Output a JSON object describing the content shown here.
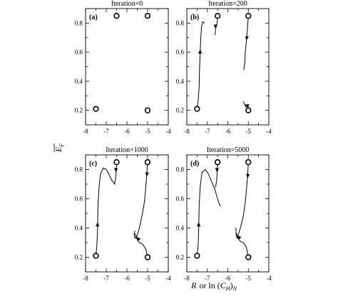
{
  "figure": {
    "xlabel_main": "R",
    "xlabel_or": "or ln (",
    "xlabel_C": "C",
    "xlabel_H": "H",
    "xlabel_close": ")",
    "xlabel_N": "N",
    "ylabel_main": "E",
    "ylabel_sub": "F"
  },
  "chart_data": [
    {
      "type": "scatter",
      "label": "(a)",
      "title": "Iteration=0",
      "xlim": [
        -8,
        -4
      ],
      "ylim": [
        0.1,
        0.9
      ],
      "xticks": [
        -8,
        -7,
        -6,
        -5,
        -4
      ],
      "yticks": [
        0.2,
        0.4,
        0.6,
        0.8
      ],
      "points": [
        [
          -7.5,
          0.21
        ],
        [
          -6.5,
          0.85
        ],
        [
          -5,
          0.85
        ],
        [
          -5,
          0.2
        ]
      ],
      "paths": []
    },
    {
      "type": "scatter",
      "label": "(b)",
      "title": "Iteration=200",
      "xlim": [
        -8,
        -4
      ],
      "ylim": [
        0.1,
        0.9
      ],
      "xticks": [
        -8,
        -7,
        -6,
        -5,
        -4
      ],
      "yticks": [
        0.2,
        0.4,
        0.6,
        0.8
      ],
      "points": [
        [
          -7.5,
          0.21
        ],
        [
          -6.5,
          0.85
        ],
        [
          -5,
          0.85
        ],
        [
          -5,
          0.2
        ]
      ],
      "paths": [
        {
          "points": [
            [
              -7.5,
              0.21
            ],
            [
              -7.45,
              0.26
            ],
            [
              -7.4,
              0.36
            ],
            [
              -7.38,
              0.48
            ],
            [
              -7.35,
              0.6
            ],
            [
              -7.32,
              0.7
            ],
            [
              -7.28,
              0.78
            ],
            [
              -7.22,
              0.81
            ],
            [
              -7.15,
              0.8
            ]
          ],
          "arrow": {
            "at": [
              -7.35,
              0.62
            ],
            "angle": 90
          }
        },
        {
          "points": [
            [
              -6.5,
              0.85
            ],
            [
              -6.52,
              0.8
            ],
            [
              -6.6,
              0.76
            ],
            [
              -6.62,
              0.72
            ]
          ],
          "arrow": {
            "at": [
              -6.6,
              0.76
            ],
            "angle": -90
          }
        },
        {
          "points": [
            [
              -5,
              0.85
            ],
            [
              -5.05,
              0.75
            ],
            [
              -5.1,
              0.67
            ],
            [
              -5.15,
              0.6
            ],
            [
              -5.17,
              0.53
            ],
            [
              -5.22,
              0.48
            ]
          ],
          "arrow": {
            "at": [
              -5.1,
              0.68
            ],
            "angle": -100
          }
        },
        {
          "points": [
            [
              -5,
              0.2
            ],
            [
              -5.1,
              0.22
            ],
            [
              -5.18,
              0.24
            ],
            [
              -5.25,
              0.26
            ]
          ],
          "arrow": {
            "at": [
              -5.18,
              0.24
            ],
            "angle": 160
          }
        }
      ]
    },
    {
      "type": "scatter",
      "label": "(c)",
      "title": "Iteration=1000",
      "xlim": [
        -8,
        -4
      ],
      "ylim": [
        0.1,
        0.9
      ],
      "xticks": [
        -8,
        -7,
        -6,
        -5,
        -4
      ],
      "yticks": [
        0.2,
        0.4,
        0.6,
        0.8
      ],
      "points": [
        [
          -7.5,
          0.21
        ],
        [
          -6.5,
          0.85
        ],
        [
          -5,
          0.85
        ],
        [
          -5,
          0.2
        ]
      ],
      "paths": [
        {
          "points": [
            [
              -7.5,
              0.21
            ],
            [
              -7.45,
              0.28
            ],
            [
              -7.42,
              0.4
            ],
            [
              -7.4,
              0.55
            ],
            [
              -7.35,
              0.68
            ],
            [
              -7.28,
              0.77
            ],
            [
              -7.15,
              0.81
            ],
            [
              -7.0,
              0.8
            ],
            [
              -6.88,
              0.77
            ],
            [
              -6.75,
              0.73
            ],
            [
              -6.6,
              0.7
            ]
          ],
          "arrow": {
            "at": [
              -7.42,
              0.44
            ],
            "angle": 90
          }
        },
        {
          "points": [
            [
              -6.5,
              0.85
            ],
            [
              -6.52,
              0.78
            ],
            [
              -6.55,
              0.74
            ],
            [
              -6.6,
              0.7
            ]
          ],
          "arrow": {
            "at": [
              -6.53,
              0.78
            ],
            "angle": -90
          }
        },
        {
          "points": [
            [
              -5,
              0.85
            ],
            [
              -5.04,
              0.76
            ],
            [
              -5.1,
              0.66
            ],
            [
              -5.15,
              0.58
            ],
            [
              -5.25,
              0.5
            ],
            [
              -5.32,
              0.45
            ],
            [
              -5.4,
              0.4
            ],
            [
              -5.5,
              0.35
            ],
            [
              -5.6,
              0.33
            ],
            [
              -5.65,
              0.35
            ],
            [
              -5.62,
              0.38
            ]
          ],
          "arrow": {
            "at": [
              -5.04,
              0.75
            ],
            "angle": -95
          }
        },
        {
          "points": [
            [
              -5,
              0.2
            ],
            [
              -5.1,
              0.26
            ],
            [
              -5.25,
              0.29
            ],
            [
              -5.4,
              0.3
            ],
            [
              -5.5,
              0.32
            ],
            [
              -5.6,
              0.36
            ]
          ],
          "arrow": {
            "at": [
              -5.55,
              0.34
            ],
            "angle": 135
          }
        }
      ]
    },
    {
      "type": "scatter",
      "label": "(d)",
      "title": "Iteration=5000",
      "xlim": [
        -8,
        -4
      ],
      "ylim": [
        0.1,
        0.9
      ],
      "xticks": [
        -8,
        -7,
        -6,
        -5,
        -4
      ],
      "yticks": [
        0.2,
        0.4,
        0.6,
        0.8
      ],
      "points": [
        [
          -7.5,
          0.21
        ],
        [
          -6.5,
          0.85
        ],
        [
          -5,
          0.85
        ],
        [
          -5,
          0.2
        ]
      ],
      "paths": [
        {
          "points": [
            [
              -7.5,
              0.21
            ],
            [
              -7.45,
              0.28
            ],
            [
              -7.42,
              0.4
            ],
            [
              -7.4,
              0.55
            ],
            [
              -7.35,
              0.68
            ],
            [
              -7.26,
              0.78
            ],
            [
              -7.1,
              0.8
            ],
            [
              -6.95,
              0.77
            ],
            [
              -6.8,
              0.72
            ],
            [
              -6.65,
              0.67
            ],
            [
              -6.5,
              0.6
            ],
            [
              -6.38,
              0.55
            ]
          ],
          "arrow": {
            "at": [
              -7.42,
              0.44
            ],
            "angle": 90
          }
        },
        {
          "points": [
            [
              -6.5,
              0.85
            ],
            [
              -6.52,
              0.78
            ],
            [
              -6.55,
              0.72
            ],
            [
              -6.6,
              0.68
            ]
          ],
          "arrow": {
            "at": [
              -6.53,
              0.78
            ],
            "angle": -90
          }
        },
        {
          "points": [
            [
              -5,
              0.85
            ],
            [
              -5.04,
              0.75
            ],
            [
              -5.1,
              0.65
            ],
            [
              -5.15,
              0.57
            ],
            [
              -5.25,
              0.48
            ],
            [
              -5.35,
              0.42
            ],
            [
              -5.45,
              0.37
            ],
            [
              -5.55,
              0.33
            ],
            [
              -5.6,
              0.36
            ],
            [
              -5.6,
              0.4
            ]
          ],
          "arrow": {
            "at": [
              -5.04,
              0.74
            ],
            "angle": -95
          }
        },
        {
          "points": [
            [
              -5,
              0.2
            ],
            [
              -5.1,
              0.27
            ],
            [
              -5.25,
              0.3
            ],
            [
              -5.4,
              0.31
            ],
            [
              -5.5,
              0.33
            ],
            [
              -5.6,
              0.37
            ]
          ],
          "arrow": {
            "at": [
              -5.55,
              0.35
            ],
            "angle": 135
          }
        }
      ]
    }
  ]
}
